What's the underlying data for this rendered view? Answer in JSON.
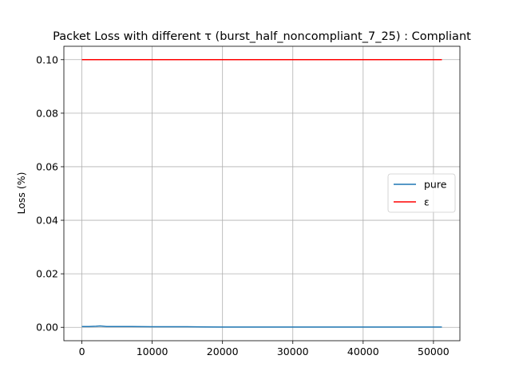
{
  "chart_data": {
    "type": "line",
    "title": "Packet Loss with different τ (burst_half_noncompliant_7_25) : Compliant",
    "xlabel": "",
    "ylabel": "Loss (%)",
    "xlim": [
      -2560,
      53760
    ],
    "ylim": [
      -0.005,
      0.105
    ],
    "xticks": [
      0,
      10000,
      20000,
      30000,
      40000,
      50000
    ],
    "yticks": [
      0.0,
      0.02,
      0.04,
      0.06,
      0.08,
      0.1
    ],
    "xtick_labels": [
      "0",
      "10000",
      "20000",
      "30000",
      "40000",
      "50000"
    ],
    "ytick_labels": [
      "0.00",
      "0.02",
      "0.04",
      "0.06",
      "0.08",
      "0.10"
    ],
    "grid": true,
    "legend_position": "center-right",
    "series": [
      {
        "name": "pure",
        "color": "#1f77b4",
        "x": [
          0,
          1000,
          2000,
          2600,
          3500,
          5000,
          7000,
          10000,
          15000,
          20000,
          25000,
          30000,
          35000,
          40000,
          45000,
          51200
        ],
        "y": [
          0.0003,
          0.0003,
          0.0004,
          0.0005,
          0.0003,
          0.0003,
          0.0003,
          0.0002,
          0.0002,
          0.0001,
          0.0001,
          0.0001,
          0.0001,
          0.0001,
          0.0001,
          0.0001
        ]
      },
      {
        "name": "ε",
        "color": "#ff0000",
        "x": [
          0,
          51200
        ],
        "y": [
          0.1,
          0.1
        ]
      }
    ]
  }
}
